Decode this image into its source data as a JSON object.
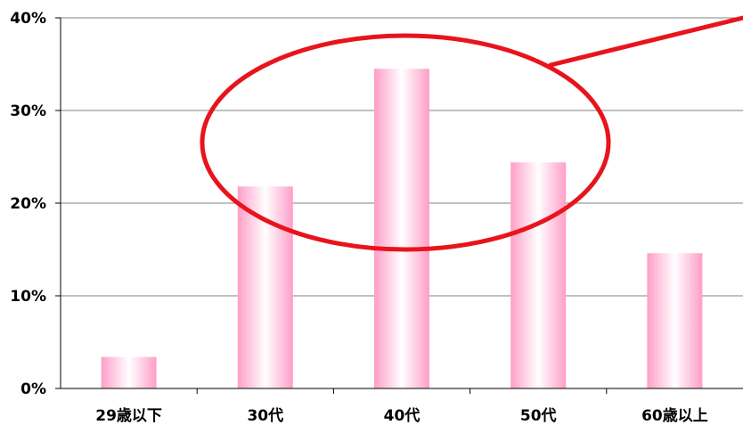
{
  "chart_data": {
    "type": "bar",
    "categories": [
      "29歳以下",
      "30代",
      "40代",
      "50代",
      "60歳以上"
    ],
    "values": [
      3.4,
      21.8,
      34.5,
      24.4,
      14.6
    ],
    "ylim": [
      0,
      40
    ],
    "yticks": [
      0,
      10,
      20,
      30,
      40
    ],
    "ytick_labels": [
      "0%",
      "10%",
      "20%",
      "30%",
      "40%"
    ],
    "grid": true,
    "bar_gradient": [
      "#ff9ec8",
      "#ffffff",
      "#ff9ec8"
    ],
    "highlight_color": "#e8141c",
    "highlight": "ellipse around 30代, 40代, 50代 with callout line"
  }
}
